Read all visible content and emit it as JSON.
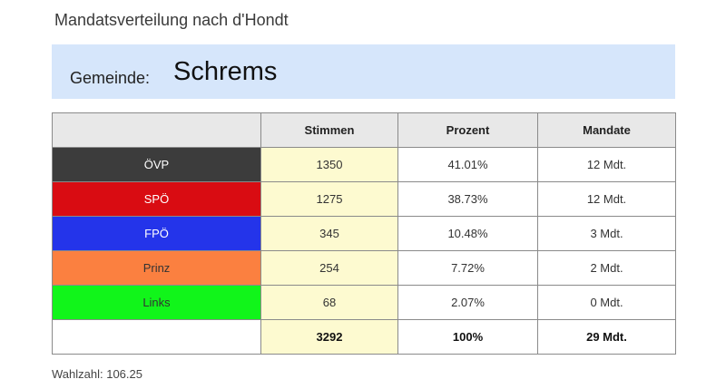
{
  "title": "Mandatsverteilung nach d'Hondt",
  "header": {
    "label": "Gemeinde:",
    "name": "Schrems"
  },
  "table": {
    "columns": [
      "",
      "Stimmen",
      "Prozent",
      "Mandate"
    ],
    "rows": [
      {
        "party": "ÖVP",
        "color": "#3c3c3c",
        "text_color": "#ffffff",
        "votes": "1350",
        "percent": "41.01%",
        "seats": "12 Mdt."
      },
      {
        "party": "SPÖ",
        "color": "#d90c12",
        "text_color": "#ffffff",
        "votes": "1275",
        "percent": "38.73%",
        "seats": "12 Mdt."
      },
      {
        "party": "FPÖ",
        "color": "#2434ea",
        "text_color": "#ffffff",
        "votes": "345",
        "percent": "10.48%",
        "seats": "3 Mdt."
      },
      {
        "party": "Prinz",
        "color": "#fb8040",
        "text_color": "#333333",
        "votes": "254",
        "percent": "7.72%",
        "seats": "2 Mdt."
      },
      {
        "party": "Links",
        "color": "#11f51a",
        "text_color": "#333333",
        "votes": "68",
        "percent": "2.07%",
        "seats": "0 Mdt."
      }
    ],
    "total": {
      "votes": "3292",
      "percent": "100%",
      "seats": "29 Mdt."
    }
  },
  "footer": "Wahlzahl: 106.25"
}
